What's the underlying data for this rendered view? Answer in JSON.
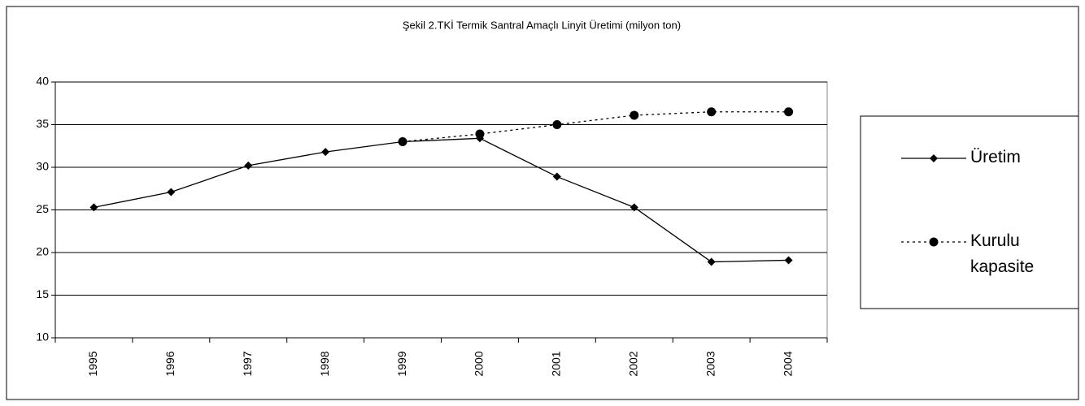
{
  "chart_data": {
    "type": "line",
    "title": "Şekil 2.TKİ Termik Santral Amaçlı Linyit Üretimi (milyon ton)",
    "categories": [
      "1995",
      "1996",
      "1997",
      "1998",
      "1999",
      "2000",
      "2001",
      "2002",
      "2003",
      "2004"
    ],
    "series": [
      {
        "name": "Üretim",
        "color": "#000000",
        "line_style": "solid",
        "marker": "diamond",
        "values": [
          25.3,
          27.1,
          30.2,
          31.8,
          33.0,
          33.4,
          28.9,
          25.3,
          18.9,
          19.1
        ]
      },
      {
        "name": "Kurulu kapasite",
        "color": "#000000",
        "line_style": "dotted",
        "marker": "circle",
        "values": [
          null,
          null,
          null,
          null,
          33.0,
          33.9,
          35.0,
          36.1,
          36.5,
          36.5
        ]
      }
    ],
    "ylim": [
      10,
      40
    ],
    "yticks": [
      10,
      15,
      20,
      25,
      30,
      35,
      40
    ],
    "grid": true,
    "legend": "right"
  }
}
